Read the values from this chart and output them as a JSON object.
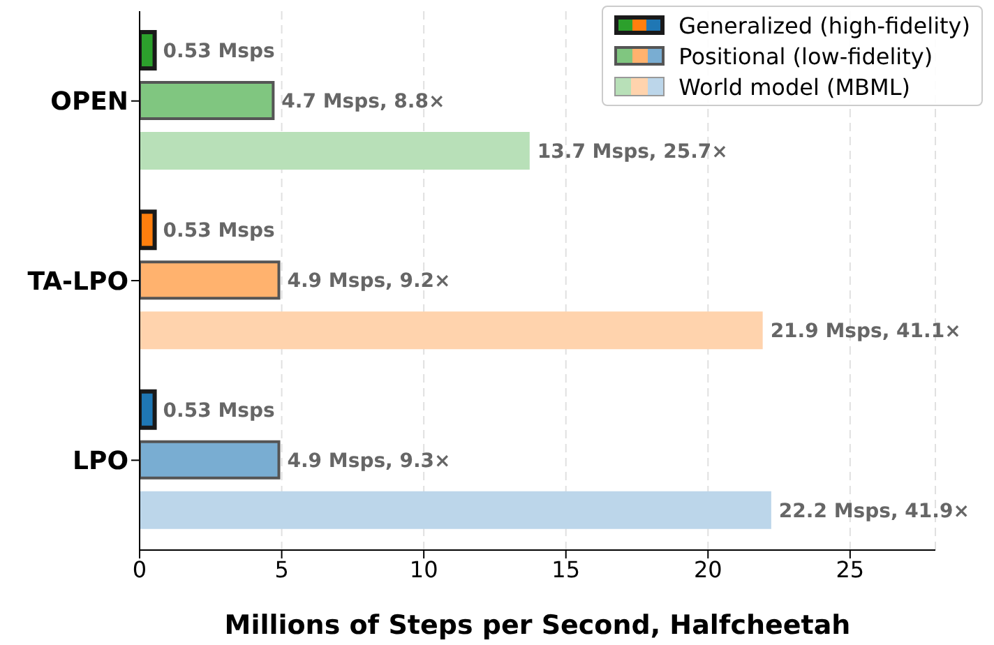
{
  "chart_data": {
    "type": "bar",
    "orientation": "horizontal",
    "xlabel": "Millions of Steps per Second, Halfcheetah",
    "categories": [
      "OPEN",
      "TA-LPO",
      "LPO"
    ],
    "series": [
      {
        "name": "Generalized (high-fidelity)",
        "colors": [
          "#2ca02c",
          "#ff7f0e",
          "#1f77b4"
        ],
        "values": [
          0.53,
          0.53,
          0.53
        ],
        "value_labels": [
          "0.53 Msps",
          "0.53 Msps",
          "0.53 Msps"
        ]
      },
      {
        "name": "Positional (low-fidelity)",
        "colors": [
          "#80c680",
          "#ffb26e",
          "#79add2"
        ],
        "values": [
          4.7,
          4.9,
          4.9
        ],
        "value_labels": [
          "4.7 Msps, 8.8×",
          "4.9 Msps, 9.2×",
          "4.9 Msps, 9.3×"
        ]
      },
      {
        "name": "World model (MBML)",
        "colors": [
          "#b8e0b8",
          "#ffd3ad",
          "#bcd6ea"
        ],
        "values": [
          13.7,
          21.9,
          22.2
        ],
        "value_labels": [
          "13.7 Msps, 25.7×",
          "21.9 Msps, 41.1×",
          "22.2 Msps, 41.9×"
        ]
      }
    ],
    "xlim": [
      0,
      28
    ],
    "xticks": [
      0,
      5,
      10,
      15,
      20,
      25
    ],
    "grid": "x",
    "legend": "top right"
  }
}
